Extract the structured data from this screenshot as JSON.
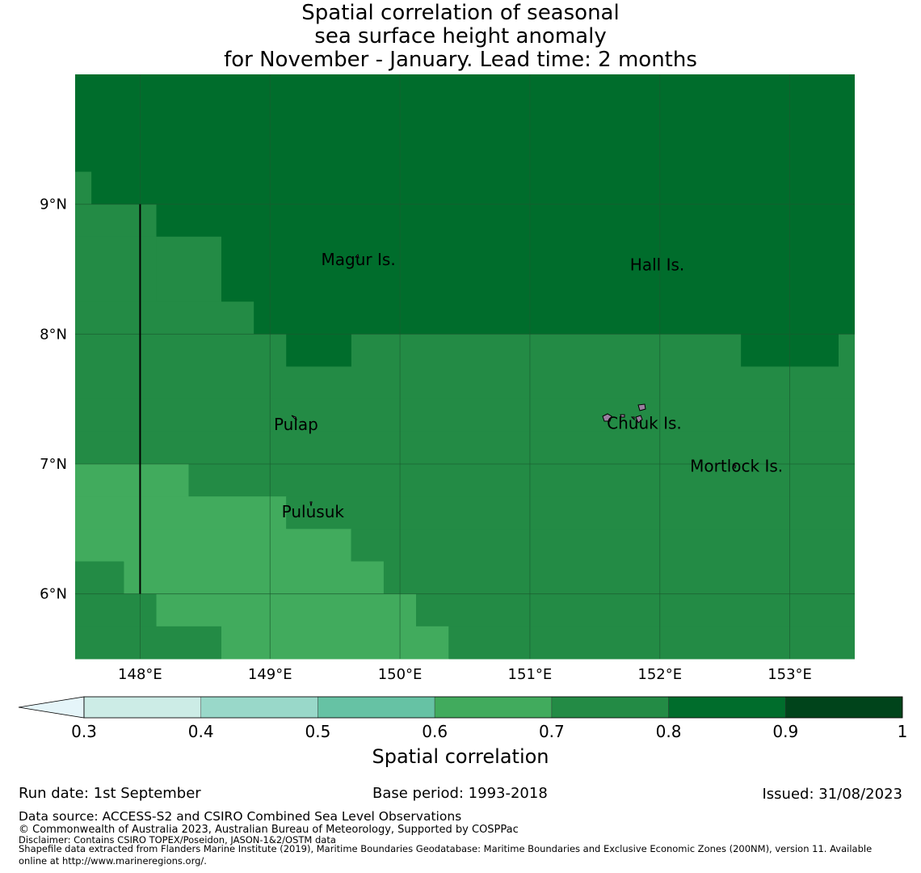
{
  "title": {
    "line1": "Spatial correlation of seasonal",
    "line2": "sea surface height anomaly",
    "line3": "for November - January. Lead time: 2 months"
  },
  "map": {
    "lon_range": [
      147.5,
      153.5
    ],
    "lat_range": [
      5.5,
      10.0
    ],
    "lon_ticks": [
      "148°E",
      "149°E",
      "150°E",
      "151°E",
      "152°E",
      "153°E"
    ],
    "lat_ticks": [
      "9°N",
      "8°N",
      "7°N",
      "6°N"
    ],
    "lon_tick_values": [
      148,
      149,
      150,
      151,
      152,
      153
    ],
    "lat_tick_values": [
      9,
      8,
      7,
      6
    ],
    "boundary_line_lon": 148.0,
    "boundary_line_lat_range": [
      6.0,
      9.0
    ],
    "colors": {
      "r06_07": "#41ab5d",
      "r07_08": "#238b45",
      "r08_09": "#006d2c",
      "grid": "#1c5a30",
      "boundary": "#000000"
    },
    "labels": [
      {
        "name": "Magur Is.",
        "lon": 149.68,
        "lat": 8.53
      },
      {
        "name": "Hall Is.",
        "lon": 151.98,
        "lat": 8.49
      },
      {
        "name": "Pulap",
        "lon": 149.2,
        "lat": 7.26
      },
      {
        "name": "Chuuk Is.",
        "lon": 151.88,
        "lat": 7.27
      },
      {
        "name": "Mortlock Is.",
        "lon": 152.59,
        "lat": 6.94
      },
      {
        "name": "Pulusuk",
        "lon": 149.33,
        "lat": 6.59
      }
    ]
  },
  "colorbar": {
    "label": "Spatial correlation",
    "ticks": [
      "0.3",
      "0.4",
      "0.5",
      "0.6",
      "0.7",
      "0.8",
      "0.9",
      "1"
    ],
    "extend_color": "#e5f5f9",
    "bins": [
      {
        "from": 0.3,
        "to": 0.4,
        "color": "#ccece6"
      },
      {
        "from": 0.4,
        "to": 0.5,
        "color": "#99d8c9"
      },
      {
        "from": 0.5,
        "to": 0.6,
        "color": "#66c2a4"
      },
      {
        "from": 0.6,
        "to": 0.7,
        "color": "#41ab5d"
      },
      {
        "from": 0.7,
        "to": 0.8,
        "color": "#238b45"
      },
      {
        "from": 0.8,
        "to": 0.9,
        "color": "#006d2c"
      },
      {
        "from": 0.9,
        "to": 1.0,
        "color": "#00441b"
      }
    ]
  },
  "footer": {
    "run_date": "Run date: 1st September",
    "base_period": "Base period: 1993-2018",
    "issued": "Issued: 31/08/2023",
    "data_source": "Data source: ACCESS-S2 and CSIRO Combined Sea Level Observations",
    "copyright": "© Commonwealth of Australia 2023, Australian Bureau of Meteorology, Supported by COSPPac",
    "disclaimer": "Disclaimer: Contains CSIRO TOPEX/Poseidon, JASON-1&2/OSTM data",
    "shapefile_line1": "Shapefile data extracted from Flanders Marine Institute (2019), Maritime Boundaries Geodatabase: Maritime Boundaries and Exclusive Economic Zones (200NM), version 11. Available",
    "shapefile_line2": "online at http://www.marineregions.org/."
  }
}
